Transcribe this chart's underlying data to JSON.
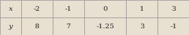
{
  "headers": [
    "x",
    "-2",
    "-1",
    "0",
    "1",
    "3"
  ],
  "values": [
    "y",
    "8",
    "7",
    "-1.25",
    "3",
    "-1"
  ],
  "background_color": "#e8e0d0",
  "border_color": "#999999",
  "header_italic": [
    true,
    false,
    false,
    false,
    false,
    false
  ],
  "value_italic": [
    true,
    false,
    false,
    false,
    false,
    false
  ],
  "col_weights": [
    0.68,
    1.0,
    1.0,
    1.35,
    1.0,
    1.0
  ],
  "figsize": [
    2.76,
    0.52
  ],
  "dpi": 100,
  "font_size": 7.5,
  "lw": 0.6
}
